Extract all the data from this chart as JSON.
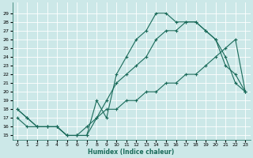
{
  "xlabel": "Humidex (Indice chaleur)",
  "bg_color": "#cce8e8",
  "grid_color": "#ffffff",
  "line_color": "#1a6b5a",
  "xlim": [
    -0.5,
    23.5
  ],
  "ylim": [
    14.5,
    30.2
  ],
  "xticks": [
    0,
    1,
    2,
    3,
    4,
    5,
    6,
    7,
    8,
    9,
    10,
    11,
    12,
    13,
    14,
    15,
    16,
    17,
    18,
    19,
    20,
    21,
    22,
    23
  ],
  "yticks": [
    15,
    16,
    17,
    18,
    19,
    20,
    21,
    22,
    23,
    24,
    25,
    26,
    27,
    28,
    29
  ],
  "curve1_x": [
    0,
    1,
    2,
    3,
    4,
    5,
    6,
    7,
    8,
    9,
    10,
    11,
    12,
    13,
    14,
    15,
    16,
    17,
    18,
    19,
    20,
    21,
    22,
    23
  ],
  "curve1_y": [
    18,
    17,
    16,
    16,
    16,
    15,
    15,
    15,
    19,
    17,
    22,
    24,
    26,
    27,
    29,
    29,
    28,
    28,
    28,
    27,
    26,
    24,
    21,
    20
  ],
  "curve2_x": [
    0,
    1,
    2,
    3,
    4,
    5,
    6,
    7,
    8,
    9,
    10,
    11,
    12,
    13,
    14,
    15,
    16,
    17,
    18,
    19,
    20,
    21,
    22,
    23
  ],
  "curve2_y": [
    18,
    17,
    16,
    16,
    16,
    15,
    15,
    15,
    17,
    19,
    21,
    22,
    23,
    24,
    26,
    27,
    27,
    28,
    28,
    27,
    26,
    23,
    22,
    20
  ],
  "curve3_x": [
    0,
    1,
    2,
    3,
    4,
    5,
    6,
    7,
    8,
    9,
    10,
    11,
    12,
    13,
    14,
    15,
    16,
    17,
    18,
    19,
    20,
    21,
    22,
    23
  ],
  "curve3_y": [
    17,
    16,
    16,
    16,
    16,
    15,
    15,
    16,
    17,
    18,
    18,
    19,
    19,
    20,
    20,
    21,
    21,
    22,
    22,
    23,
    24,
    25,
    26,
    20
  ]
}
